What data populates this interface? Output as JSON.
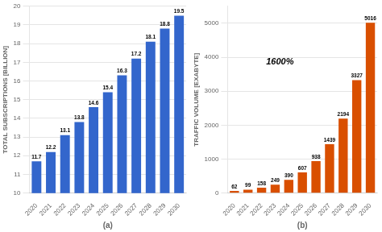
{
  "chart_data": [
    {
      "type": "bar",
      "categories": [
        "2020",
        "2021",
        "2022",
        "2023",
        "2024",
        "2025",
        "2026",
        "2027",
        "2028",
        "2029",
        "2030"
      ],
      "values": [
        11.7,
        12.2,
        13.1,
        13.8,
        14.6,
        15.4,
        16.3,
        17.2,
        18.1,
        18.8,
        19.5
      ],
      "color": "#3366cc",
      "ylabel": "TOTAL SUBSCRIPTIONS [BILLION]",
      "xlabel": "(a)",
      "ylim": [
        10,
        20
      ],
      "yticks": [
        10,
        11,
        12,
        13,
        14,
        15,
        16,
        17,
        18,
        19,
        20
      ],
      "grid": true,
      "data_labels": true
    },
    {
      "type": "bar",
      "categories": [
        "2020",
        "2021",
        "2022",
        "2023",
        "2024",
        "2025",
        "2026",
        "2027",
        "2028",
        "2029",
        "2030"
      ],
      "values": [
        62,
        99,
        158,
        249,
        390,
        607,
        938,
        1439,
        2194,
        3327,
        5016
      ],
      "color": "#d94f00",
      "ylabel": "TRAFFIC VOLUME [EXABYTE]",
      "xlabel": "(b)",
      "ylim": [
        0,
        5500
      ],
      "yticks": [
        0,
        1000,
        2000,
        3000,
        4000,
        5000
      ],
      "annotation": "1600%",
      "grid": true,
      "data_labels": true
    }
  ]
}
